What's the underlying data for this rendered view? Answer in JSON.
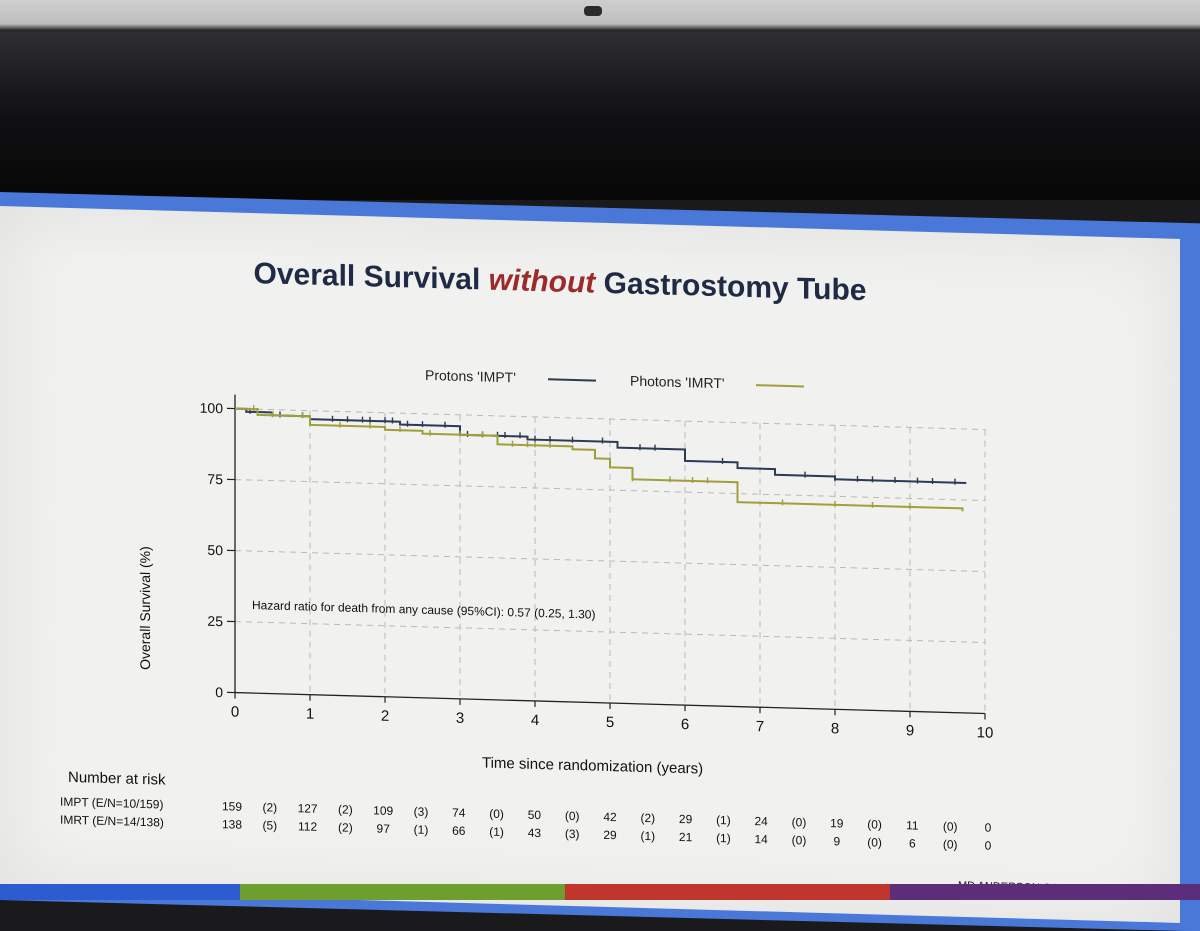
{
  "slide": {
    "title_pre": "Overall Survival ",
    "title_em": "without",
    "title_post": " Gastrostomy Tube",
    "footer": "MD ANDERSON CANCER CENTER"
  },
  "chart_data": {
    "type": "line",
    "title": "Overall Survival without Gastrostomy Tube",
    "xlabel": "Time since randomization (years)",
    "ylabel": "Overall Survival (%)",
    "xlim": [
      0,
      10
    ],
    "ylim": [
      0,
      100
    ],
    "x_ticks": [
      0,
      1,
      2,
      3,
      4,
      5,
      6,
      7,
      8,
      9,
      10
    ],
    "y_ticks": [
      0,
      25,
      50,
      75,
      100
    ],
    "grid": true,
    "legend_position": "top",
    "annotation": "Hazard ratio for death from any cause (95%CI): 0.57 (0.25, 1.30)",
    "series": [
      {
        "name": "Protons 'IMPT'",
        "color": "#2b3a55",
        "step_x": [
          0,
          0.15,
          0.5,
          1.0,
          2.2,
          3.0,
          3.9,
          5.1,
          6.0,
          6.7,
          7.2,
          8.0,
          9.75
        ],
        "step_y": [
          100,
          99,
          98,
          97,
          96,
          93,
          92,
          90,
          86,
          84,
          82,
          81,
          81
        ],
        "censor_x": [
          0.2,
          0.3,
          0.6,
          0.9,
          1.3,
          1.5,
          1.7,
          1.8,
          2.0,
          2.1,
          2.3,
          2.5,
          2.8,
          3.1,
          3.3,
          3.5,
          3.6,
          3.8,
          4.0,
          4.2,
          4.5,
          4.9,
          5.4,
          5.6,
          6.5,
          7.6,
          8.0,
          8.3,
          8.5,
          8.8,
          9.1,
          9.3,
          9.6
        ]
      },
      {
        "name": "Photons 'IMRT'",
        "color": "#a0a03a",
        "step_x": [
          0,
          0.3,
          1.0,
          2.0,
          2.5,
          3.5,
          4.5,
          4.8,
          5.0,
          5.3,
          6.7,
          9.7
        ],
        "step_y": [
          100,
          98,
          95,
          94,
          93,
          90,
          89,
          86,
          83,
          79,
          72,
          71
        ],
        "censor_x": [
          0.25,
          0.5,
          0.9,
          1.4,
          1.8,
          2.2,
          2.6,
          3.0,
          3.3,
          3.7,
          3.9,
          4.0,
          4.2,
          5.3,
          5.8,
          6.1,
          6.3,
          7.3,
          8.0,
          8.5,
          9.0
        ]
      }
    ],
    "risk_table": {
      "header": "Number at risk",
      "rows": [
        {
          "label": "IMPT (E/N=10/159)",
          "cells": [
            "159",
            "(2)",
            "127",
            "(2)",
            "109",
            "(3)",
            "74",
            "(0)",
            "50",
            "(0)",
            "42",
            "(2)",
            "29",
            "(1)",
            "24",
            "(0)",
            "19",
            "(0)",
            "11",
            "(0)",
            "0"
          ]
        },
        {
          "label": "IMRT (E/N=14/138)",
          "cells": [
            "138",
            "(5)",
            "112",
            "(2)",
            "97",
            "(1)",
            "66",
            "(1)",
            "43",
            "(3)",
            "29",
            "(1)",
            "21",
            "(1)",
            "14",
            "(0)",
            "9",
            "(0)",
            "6",
            "(0)",
            "0"
          ]
        }
      ]
    }
  },
  "theme": {
    "footer_colors": [
      "#2d5bd0",
      "#6e9e2e",
      "#c0362c",
      "#5b2d7a"
    ]
  }
}
